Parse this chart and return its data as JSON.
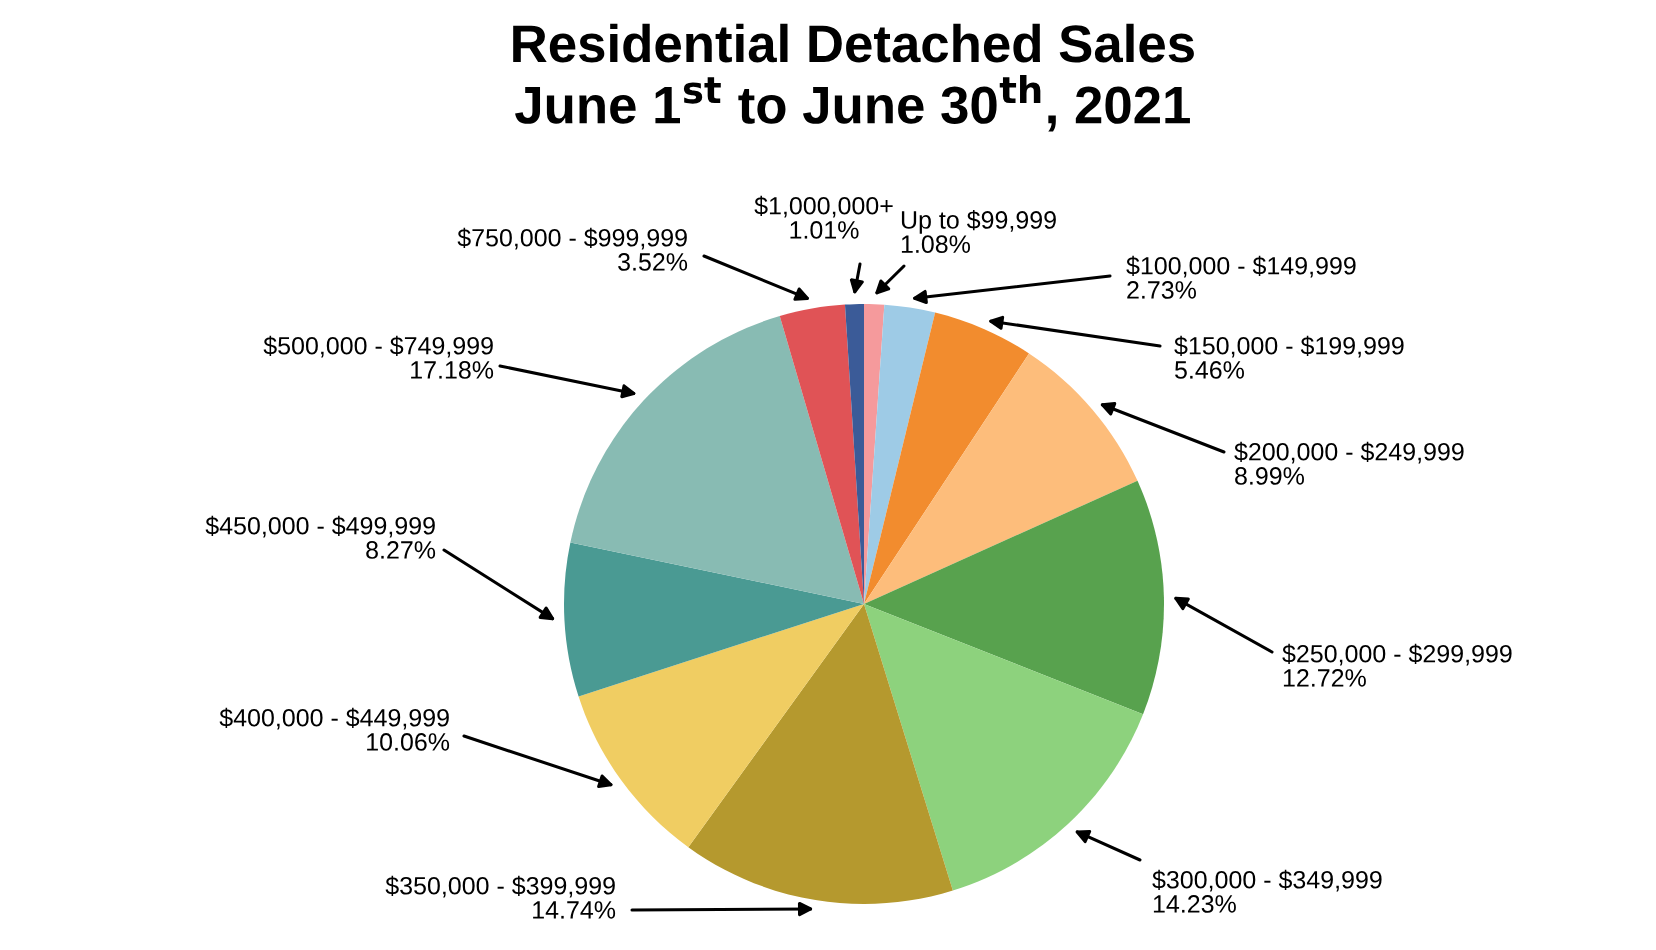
{
  "chart_data": {
    "type": "pie",
    "title": "Residential Detached Sales\nJune 1$^{st}$ to June 30$^{th}$, 2021",
    "categories": [
      "Up to $99,999",
      "$100,000 - $149,999",
      "$150,000 - $199,999",
      "$200,000 - $249,999",
      "$250,000 - $299,999",
      "$300,000 - $349,999",
      "$350,000 - $399,999",
      "$400,000 - $449,999",
      "$450,000 - $499,999",
      "$500,000 - $749,999",
      "$750,000 - $999,999",
      "$1,000,000+"
    ],
    "values": [
      1.08,
      2.73,
      5.46,
      8.99,
      12.72,
      14.23,
      14.74,
      10.06,
      8.27,
      17.18,
      3.52,
      1.01
    ],
    "value_labels": [
      "1.08%",
      "2.73%",
      "5.46%",
      "8.99%",
      "12.72%",
      "14.23%",
      "14.74%",
      "10.06%",
      "8.27%",
      "17.18%",
      "3.52%",
      "1.01%"
    ],
    "colors": [
      "#f59a9c",
      "#9ecbe6",
      "#f28c2e",
      "#fdbd7b",
      "#58a24e",
      "#8dd27d",
      "#b5992e",
      "#f0cd62",
      "#4a9a93",
      "#88bbb3",
      "#e05356",
      "#3b5b98"
    ],
    "legend": false
  }
}
